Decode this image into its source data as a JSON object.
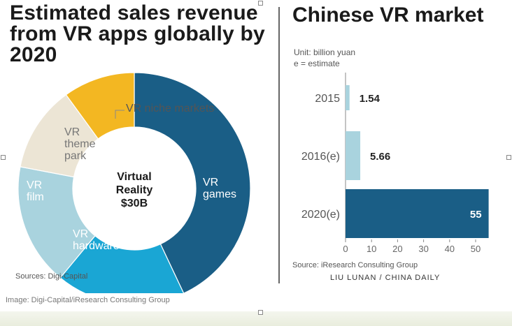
{
  "chart_data": [
    {
      "type": "pie",
      "title": "Estimated sales revenue from VR apps globally by 2020",
      "center_label": [
        "Virtual",
        "Reality",
        "$30B"
      ],
      "slices": [
        {
          "label": "VR games",
          "value": 43,
          "color": "#1a5e86"
        },
        {
          "label": "VR hardware",
          "value": 18,
          "color": "#1aa6d4"
        },
        {
          "label": "VR film",
          "value": 17,
          "color": "#a9d3de"
        },
        {
          "label": "VR theme park",
          "value": 12,
          "color": "#ece5d5"
        },
        {
          "label": "VR niche markets",
          "value": 10,
          "color": "#f3b722"
        }
      ],
      "source": "Sources: Digi-Capital"
    },
    {
      "type": "bar",
      "orientation": "horizontal",
      "title": "Chinese VR market",
      "unit": "Unit: billion yuan",
      "note": "e = estimate",
      "categories": [
        "2015",
        "2016(e)",
        "2020(e)"
      ],
      "values": [
        1.54,
        5.66,
        55
      ],
      "value_labels": [
        "1.54",
        "5.66",
        "55"
      ],
      "colors": [
        "#a9d3de",
        "#a9d3de",
        "#1a5e86"
      ],
      "xlim": [
        0,
        57
      ],
      "xticks": [
        0,
        10,
        20,
        30,
        40,
        50
      ],
      "source": "Source: iResearch Consulting Group",
      "credit": "LIU LUNAN / CHINA DAILY"
    }
  ],
  "caption": "Image: Digi-Capital/iResearch Consulting Group"
}
